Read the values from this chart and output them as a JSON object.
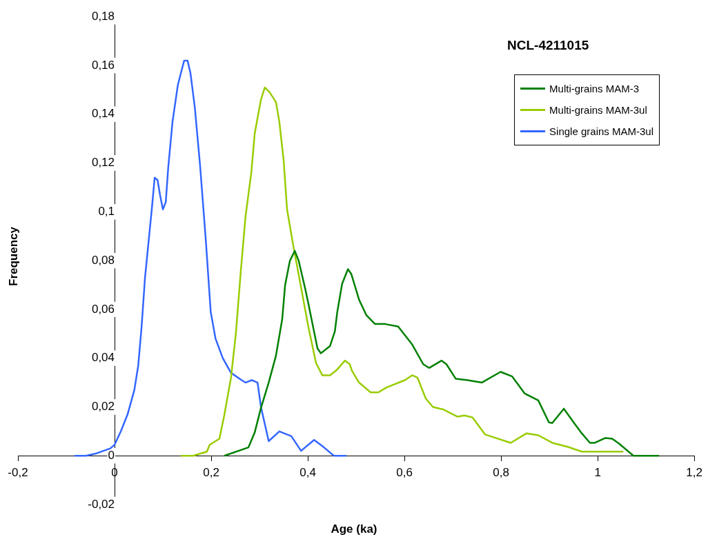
{
  "chart_data": {
    "type": "line",
    "title": "NCL-4211015",
    "xlabel": "Age (ka)",
    "ylabel": "Frequency",
    "legend": "top right",
    "grid": false,
    "marker": "none",
    "line_style": "solid",
    "xlim": [
      -0.2,
      1.2
    ],
    "ylim": [
      -0.02,
      0.18
    ],
    "xticks": [
      {
        "value": -0.2,
        "label": "-0,2"
      },
      0,
      {
        "value": 0.2,
        "label": "0,2"
      },
      {
        "value": 0.4,
        "label": "0,4"
      },
      {
        "value": 0.6,
        "label": "0,6"
      },
      {
        "value": 0.8,
        "label": "0,8"
      },
      1,
      {
        "value": 1.2,
        "label": "1,2"
      }
    ],
    "yticks": [
      {
        "value": -0.02,
        "label": "-0,02"
      },
      0,
      {
        "value": 0.02,
        "label": "0,02"
      },
      {
        "value": 0.04,
        "label": "0,04"
      },
      {
        "value": 0.06,
        "label": "0,06"
      },
      {
        "value": 0.08,
        "label": "0,08"
      },
      {
        "value": 0.1,
        "label": "0,1"
      },
      {
        "value": 0.12,
        "label": "0,12"
      },
      {
        "value": 0.14,
        "label": "0,14"
      },
      {
        "value": 0.16,
        "label": "0,16"
      },
      {
        "value": 0.18,
        "label": "0,18"
      }
    ],
    "series": [
      {
        "name": "Multi-grains MAM-3",
        "color": "#008000",
        "x": [
          0.227,
          0.277,
          0.29,
          0.303,
          0.319,
          0.334,
          0.347,
          0.353,
          0.363,
          0.373,
          0.381,
          0.394,
          0.401,
          0.42,
          0.427,
          0.446,
          0.456,
          0.461,
          0.471,
          0.483,
          0.49,
          0.506,
          0.521,
          0.539,
          0.56,
          0.587,
          0.616,
          0.639,
          0.651,
          0.677,
          0.687,
          0.706,
          0.73,
          0.76,
          0.799,
          0.823,
          0.849,
          0.877,
          0.899,
          0.906,
          0.93,
          0.953,
          0.967,
          0.984,
          0.994,
          1.016,
          1.03,
          1.044,
          1.074,
          1.127
        ],
        "values": [
          0,
          0.0034,
          0.0095,
          0.0196,
          0.03,
          0.041,
          0.056,
          0.07,
          0.08,
          0.084,
          0.08,
          0.069,
          0.0625,
          0.044,
          0.042,
          0.045,
          0.051,
          0.059,
          0.0705,
          0.0765,
          0.0745,
          0.064,
          0.0577,
          0.054,
          0.054,
          0.053,
          0.0456,
          0.0375,
          0.036,
          0.039,
          0.0375,
          0.0316,
          0.031,
          0.03,
          0.0344,
          0.0325,
          0.0255,
          0.0227,
          0.0137,
          0.0134,
          0.0193,
          0.0129,
          0.0092,
          0.0053,
          0.0053,
          0.0073,
          0.007,
          0.005,
          0,
          0
        ]
      },
      {
        "name": "Multi-grains MAM-3ul",
        "color": "#99cc00",
        "x": [
          0.137,
          0.163,
          0.191,
          0.197,
          0.217,
          0.227,
          0.241,
          0.251,
          0.261,
          0.271,
          0.283,
          0.29,
          0.303,
          0.311,
          0.321,
          0.334,
          0.341,
          0.35,
          0.357,
          0.37,
          0.386,
          0.401,
          0.417,
          0.43,
          0.446,
          0.459,
          0.477,
          0.487,
          0.491,
          0.506,
          0.53,
          0.546,
          0.563,
          0.601,
          0.616,
          0.627,
          0.644,
          0.659,
          0.68,
          0.71,
          0.724,
          0.741,
          0.767,
          0.82,
          0.853,
          0.877,
          0.906,
          0.939,
          0.967,
          1.053
        ],
        "values": [
          0,
          0,
          0.0017,
          0.0045,
          0.007,
          0.0165,
          0.032,
          0.05,
          0.075,
          0.098,
          0.116,
          0.132,
          0.146,
          0.151,
          0.149,
          0.145,
          0.137,
          0.121,
          0.101,
          0.086,
          0.069,
          0.053,
          0.038,
          0.033,
          0.033,
          0.035,
          0.039,
          0.0375,
          0.035,
          0.03,
          0.026,
          0.026,
          0.028,
          0.031,
          0.033,
          0.032,
          0.0235,
          0.02,
          0.019,
          0.016,
          0.0165,
          0.0157,
          0.0087,
          0.0053,
          0.0092,
          0.0084,
          0.0053,
          0.0036,
          0.0017,
          0.0017
        ]
      },
      {
        "name": "Single grains MAM-3ul",
        "color": "#3366ff",
        "x": [
          -0.083,
          -0.059,
          -0.037,
          -0.023,
          -0.009,
          0,
          0.013,
          0.027,
          0.041,
          0.049,
          0.056,
          0.063,
          0.07,
          0.077,
          0.083,
          0.089,
          0.094,
          0.1,
          0.106,
          0.111,
          0.12,
          0.131,
          0.144,
          0.151,
          0.157,
          0.166,
          0.177,
          0.189,
          0.199,
          0.209,
          0.224,
          0.241,
          0.263,
          0.271,
          0.284,
          0.296,
          0.303,
          0.319,
          0.341,
          0.366,
          0.386,
          0.413,
          0.433,
          0.454,
          0.48
        ],
        "values": [
          0,
          0,
          0.001,
          0.002,
          0.003,
          0.0045,
          0.01,
          0.017,
          0.027,
          0.037,
          0.053,
          0.073,
          0.087,
          0.101,
          0.114,
          0.113,
          0.107,
          0.101,
          0.104,
          0.118,
          0.137,
          0.152,
          0.162,
          0.162,
          0.157,
          0.143,
          0.119,
          0.088,
          0.059,
          0.048,
          0.04,
          0.034,
          0.031,
          0.03,
          0.031,
          0.03,
          0.02,
          0.006,
          0.01,
          0.008,
          0.002,
          0.0065,
          0.0035,
          0,
          0
        ]
      }
    ]
  }
}
